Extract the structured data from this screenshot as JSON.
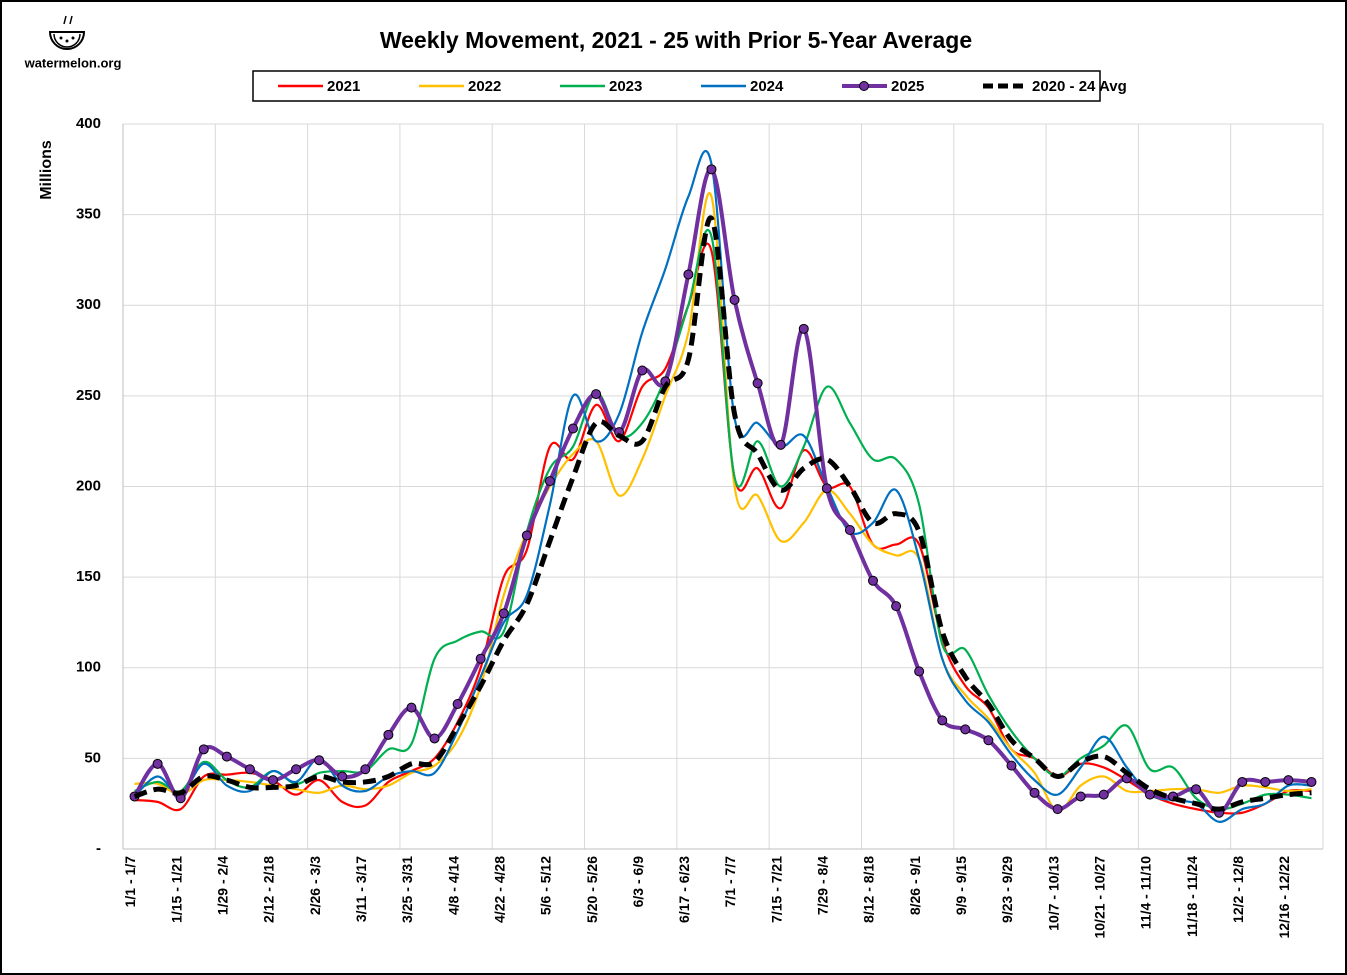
{
  "logo": "watermelon.org",
  "chart_data": {
    "type": "line",
    "title": "Weekly Movement, 2021 - 25 with Prior 5-Year Average",
    "y_label": "Millions",
    "legend": "top",
    "grid": true,
    "smooth": true,
    "categories": [
      "1/1 - 1/7",
      null,
      "1/15 - 1/21",
      null,
      "1/29 - 2/4",
      null,
      "2/12 - 2/18",
      null,
      "2/26 - 3/3",
      null,
      "3/11 - 3/17",
      null,
      "3/25 - 3/31",
      null,
      "4/8 - 4/14",
      null,
      "4/22 - 4/28",
      null,
      "5/6 - 5/12",
      null,
      "5/20 - 5/26",
      null,
      "6/3 - 6/9",
      null,
      "6/17 - 6/23",
      null,
      "7/1 - 7/7",
      null,
      "7/15 - 7/21",
      null,
      "7/29 - 8/4",
      null,
      "8/12 - 8/18",
      null,
      "8/26 - 9/1",
      null,
      "9/9 - 9/15",
      null,
      "9/23 - 9/29",
      null,
      "10/7 - 10/13",
      null,
      "10/21 - 10/27",
      null,
      "11/4 - 11/10",
      null,
      "11/18 - 11/24",
      null,
      "12/2 - 12/8",
      null,
      "12/16 - 12/22",
      null
    ],
    "ylim": [
      0,
      400
    ],
    "yticks": [
      {
        "value": 0,
        "label": "-"
      },
      50,
      100,
      150,
      200,
      250,
      300,
      350,
      400
    ],
    "series": [
      {
        "name": "2021",
        "color": "#ff0000",
        "values": [
          27,
          26,
          22,
          40,
          41,
          42,
          38,
          30,
          38,
          26,
          24,
          37,
          43,
          50,
          70,
          100,
          150,
          165,
          222,
          215,
          245,
          225,
          255,
          265,
          300,
          330,
          205,
          210,
          188,
          220,
          200,
          200,
          168,
          168,
          168,
          115,
          90,
          78,
          55,
          50,
          40,
          47,
          45,
          38,
          30,
          25,
          22,
          20,
          20,
          25,
          32,
          32
        ]
      },
      {
        "name": "2022",
        "color": "#ffc000",
        "values": [
          36,
          36,
          30,
          38,
          38,
          37,
          35,
          33,
          31,
          35,
          33,
          35,
          42,
          46,
          60,
          90,
          140,
          175,
          200,
          218,
          225,
          195,
          215,
          250,
          285,
          360,
          200,
          195,
          170,
          180,
          198,
          185,
          168,
          162,
          160,
          105,
          85,
          72,
          55,
          42,
          21,
          35,
          40,
          32,
          32,
          33,
          33,
          31,
          35,
          34,
          32,
          33
        ]
      },
      {
        "name": "2023",
        "color": "#00b050",
        "values": [
          32,
          37,
          32,
          48,
          38,
          34,
          43,
          36,
          42,
          43,
          43,
          55,
          58,
          105,
          115,
          120,
          120,
          175,
          210,
          222,
          252,
          228,
          235,
          260,
          300,
          338,
          205,
          225,
          200,
          222,
          255,
          235,
          215,
          215,
          190,
          113,
          110,
          85,
          65,
          50,
          40,
          50,
          57,
          68,
          44,
          45,
          28,
          22,
          25,
          30,
          30,
          28
        ]
      },
      {
        "name": "2024",
        "color": "#0070c0",
        "values": [
          29,
          40,
          30,
          47,
          35,
          32,
          43,
          37,
          50,
          35,
          32,
          40,
          43,
          42,
          65,
          95,
          125,
          140,
          190,
          250,
          225,
          240,
          285,
          320,
          360,
          378,
          238,
          235,
          222,
          228,
          200,
          175,
          180,
          198,
          160,
          105,
          82,
          70,
          52,
          38,
          30,
          45,
          62,
          45,
          30,
          27,
          25,
          15,
          22,
          25,
          35,
          35
        ]
      },
      {
        "name": "2025",
        "color": "#7030a0",
        "marker": true,
        "values": [
          29,
          47,
          28,
          55,
          51,
          44,
          38,
          44,
          49,
          40,
          44,
          63,
          78,
          61,
          80,
          105,
          130,
          173,
          203,
          232,
          251,
          230,
          264,
          258,
          317,
          375,
          303,
          257,
          223,
          287,
          199,
          176,
          148,
          134,
          98,
          71,
          66,
          60,
          46,
          31,
          22,
          29,
          30,
          39,
          30,
          29,
          33,
          20,
          37,
          37,
          38,
          37
        ]
      },
      {
        "name": "2020 - 24 Avg",
        "color": "#000000",
        "dash": true,
        "values": [
          29,
          33,
          31,
          40,
          38,
          34,
          34,
          35,
          40,
          37,
          37,
          40,
          47,
          48,
          68,
          90,
          115,
          135,
          170,
          205,
          235,
          228,
          225,
          255,
          270,
          348,
          240,
          218,
          198,
          210,
          215,
          200,
          180,
          185,
          175,
          120,
          95,
          80,
          60,
          50,
          40,
          48,
          51,
          42,
          33,
          28,
          25,
          22,
          26,
          28,
          30,
          31
        ]
      }
    ]
  }
}
